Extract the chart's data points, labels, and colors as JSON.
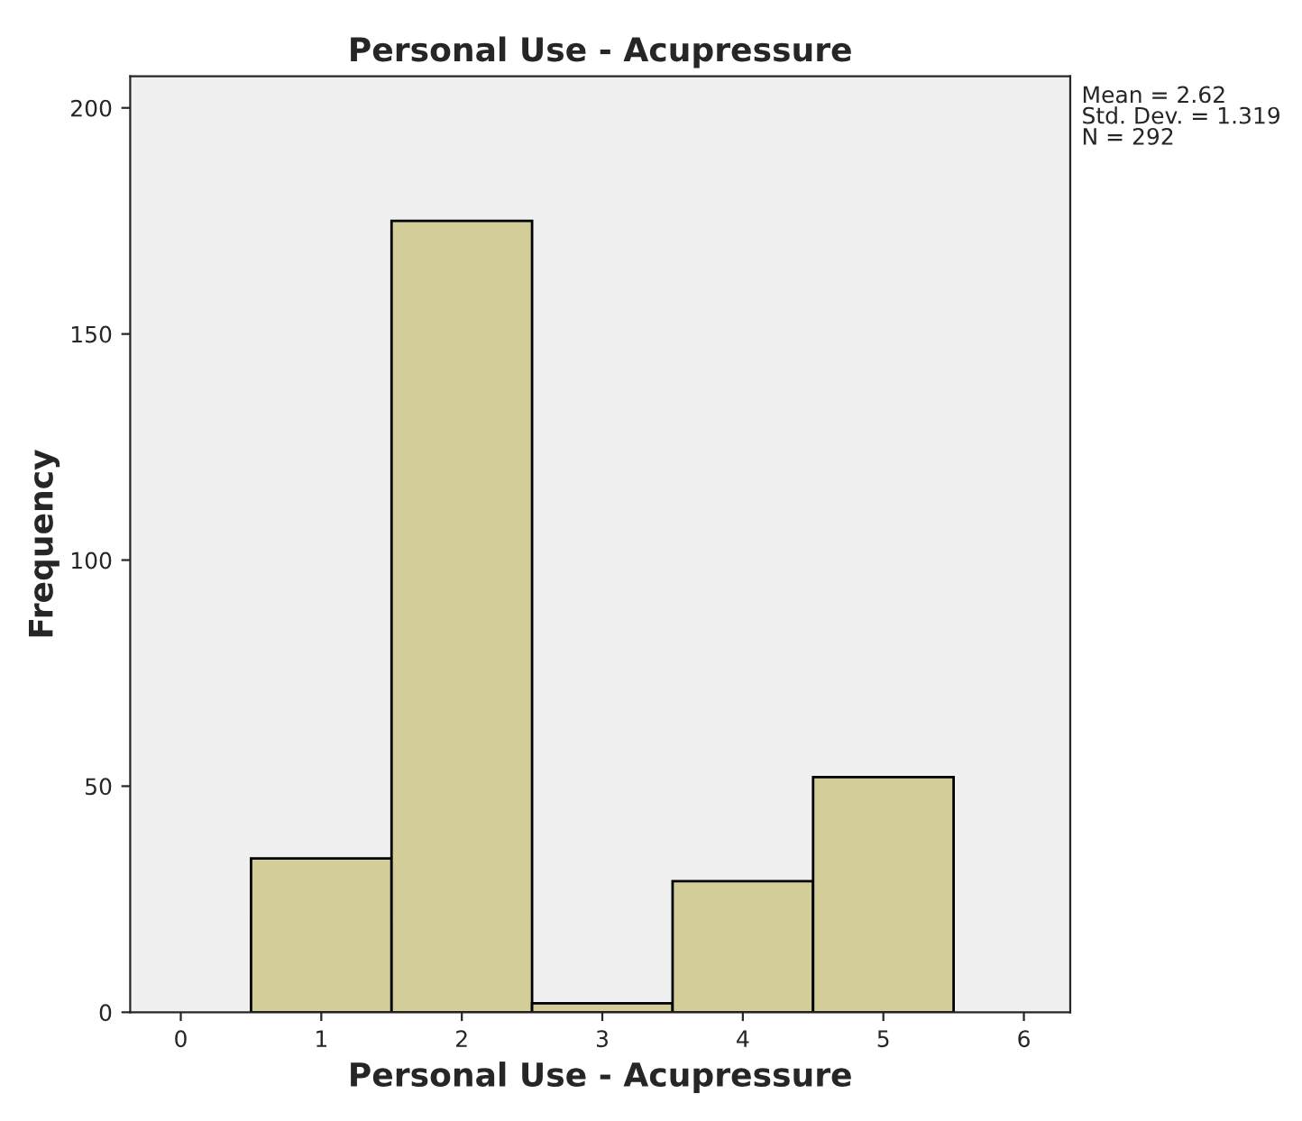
{
  "chart_data": {
    "type": "histogram",
    "title": "Personal Use - Acupressure",
    "xlabel": "Personal Use - Acupressure",
    "ylabel": "Frequency",
    "bins": [
      0.5,
      1.5,
      2.5,
      3.5,
      4.5,
      5.5
    ],
    "values": [
      34,
      175,
      2,
      29,
      52
    ],
    "color": "#d3ce99",
    "xlim": [
      -0.36,
      6.33
    ],
    "ylim": [
      0,
      207
    ],
    "xticks": [
      0,
      1,
      2,
      3,
      4,
      5,
      6
    ],
    "yticks": [
      0,
      50,
      100,
      150,
      200
    ],
    "grid": false,
    "annotations": [
      "Mean = 2.62\nStd. Dev. = 1.319\nN = 292"
    ]
  }
}
